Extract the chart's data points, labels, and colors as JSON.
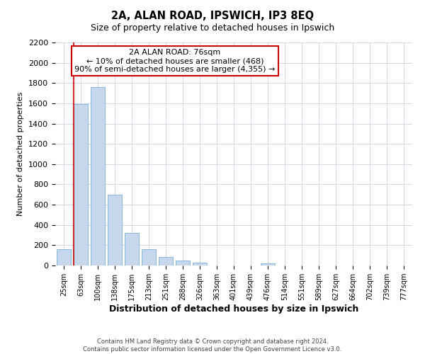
{
  "title": "2A, ALAN ROAD, IPSWICH, IP3 8EQ",
  "subtitle": "Size of property relative to detached houses in Ipswich",
  "xlabel": "Distribution of detached houses by size in Ipswich",
  "ylabel": "Number of detached properties",
  "bar_labels": [
    "25sqm",
    "63sqm",
    "100sqm",
    "138sqm",
    "175sqm",
    "213sqm",
    "251sqm",
    "288sqm",
    "326sqm",
    "363sqm",
    "401sqm",
    "439sqm",
    "476sqm",
    "514sqm",
    "551sqm",
    "589sqm",
    "627sqm",
    "664sqm",
    "702sqm",
    "739sqm",
    "777sqm"
  ],
  "bar_values": [
    160,
    1590,
    1760,
    700,
    320,
    160,
    85,
    50,
    30,
    0,
    0,
    0,
    20,
    0,
    0,
    0,
    0,
    0,
    0,
    0,
    0
  ],
  "bar_color": "#c8d8ec",
  "bar_edge_color": "#7aafd4",
  "vline_color": "#cc0000",
  "vline_x_bar": 1,
  "annotation_title": "2A ALAN ROAD: 76sqm",
  "annotation_line1": "← 10% of detached houses are smaller (468)",
  "annotation_line2": "90% of semi-detached houses are larger (4,355) →",
  "annotation_box_color": "#ffffff",
  "annotation_box_edge_color": "#cc0000",
  "ylim": [
    0,
    2200
  ],
  "yticks": [
    0,
    200,
    400,
    600,
    800,
    1000,
    1200,
    1400,
    1600,
    1800,
    2000,
    2200
  ],
  "footer_line1": "Contains HM Land Registry data © Crown copyright and database right 2024.",
  "footer_line2": "Contains public sector information licensed under the Open Government Licence v3.0.",
  "bg_color": "#ffffff",
  "plot_bg_color": "#ffffff",
  "grid_color": "#d0d8e8"
}
